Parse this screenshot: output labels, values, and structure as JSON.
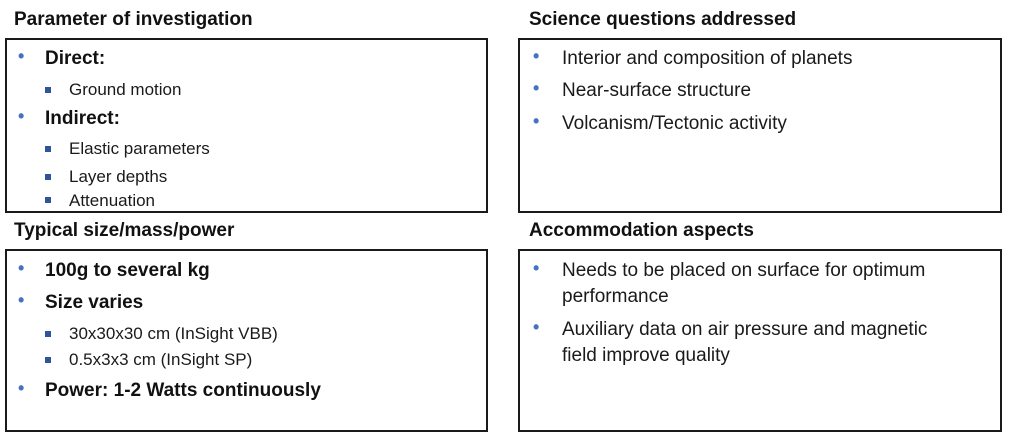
{
  "sections": {
    "parameter": {
      "title": "Parameter of investigation",
      "items": [
        {
          "level": 1,
          "text": "Direct:",
          "bold": true
        },
        {
          "level": 2,
          "text": "Ground motion"
        },
        {
          "level": 1,
          "text": "Indirect:",
          "bold": true
        },
        {
          "level": 2,
          "text": "Elastic parameters"
        },
        {
          "level": 2,
          "text": "Layer depths"
        },
        {
          "level": 2,
          "text": "Attenuation"
        }
      ]
    },
    "science": {
      "title": "Science questions addressed",
      "items": [
        {
          "level": 1,
          "text": "Interior and composition of planets"
        },
        {
          "level": 1,
          "text": "Near-surface structure"
        },
        {
          "level": 1,
          "text": "Volcanism/Tectonic activity"
        }
      ]
    },
    "typical": {
      "title": "Typical size/mass/power",
      "items": [
        {
          "level": 1,
          "text": "100g to several kg",
          "bold": true
        },
        {
          "level": 1,
          "text": "Size varies",
          "bold": true
        },
        {
          "level": 2,
          "text": "30x30x30 cm (InSight VBB)"
        },
        {
          "level": 2,
          "text": "0.5x3x3 cm (InSight SP)"
        },
        {
          "level": 1,
          "text": "Power: 1-2 Watts continuously",
          "bold": true
        }
      ]
    },
    "accommodation": {
      "title": "Accommodation aspects",
      "items": [
        {
          "level": 1,
          "text": "Needs to be placed on surface for optimum"
        },
        {
          "level": 1,
          "text": "performance",
          "continuation": true
        },
        {
          "level": 1,
          "text": "Auxiliary data on air pressure and magnetic"
        },
        {
          "level": 1,
          "text": "field improve quality",
          "continuation": true
        }
      ]
    }
  },
  "colors": {
    "bullet": "#4472c4",
    "square_bullet": "#2f5597",
    "border": "#1a1a1a"
  },
  "icons": {
    "level1_bullet": "dot-bullet-icon",
    "level2_bullet": "square-bullet-icon"
  }
}
